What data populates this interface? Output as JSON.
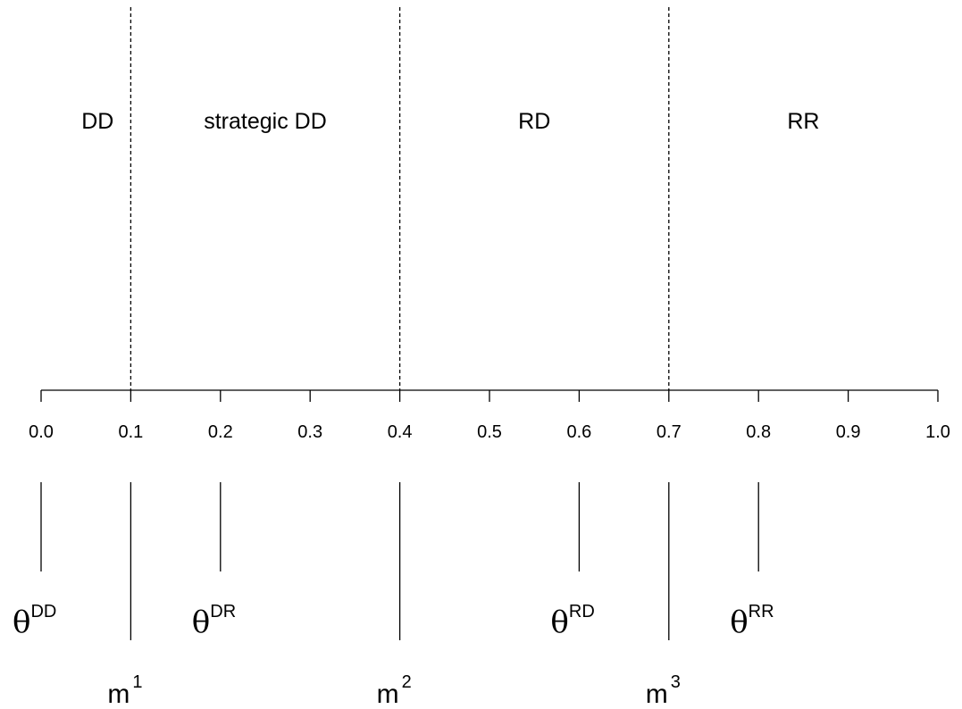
{
  "axis": {
    "min": 0.0,
    "max": 1.0,
    "ticks": [
      0.0,
      0.1,
      0.2,
      0.3,
      0.4,
      0.5,
      0.6,
      0.7,
      0.8,
      0.9,
      1.0
    ],
    "tick_labels": [
      "0.0",
      "0.1",
      "0.2",
      "0.3",
      "0.4",
      "0.5",
      "0.6",
      "0.7",
      "0.8",
      "0.9",
      "1.0"
    ]
  },
  "boundaries": [
    0.1,
    0.4,
    0.7
  ],
  "regions": [
    {
      "label": "DD",
      "center": 0.063
    },
    {
      "label": "strategic DD",
      "center": 0.25
    },
    {
      "label": "RD",
      "center": 0.55
    },
    {
      "label": "RR",
      "center": 0.85
    }
  ],
  "thetas": [
    {
      "symbol": "θ",
      "superscript": "DD",
      "value": 0.0
    },
    {
      "symbol": "θ",
      "superscript": "DR",
      "value": 0.2
    },
    {
      "symbol": "θ",
      "superscript": "RD",
      "value": 0.6
    },
    {
      "symbol": "θ",
      "superscript": "RR",
      "value": 0.8
    }
  ],
  "markers": [
    {
      "base": "m",
      "superscript": "1",
      "value": 0.1
    },
    {
      "base": "m",
      "superscript": "2",
      "value": 0.4
    },
    {
      "base": "m",
      "superscript": "3",
      "value": 0.7
    }
  ]
}
